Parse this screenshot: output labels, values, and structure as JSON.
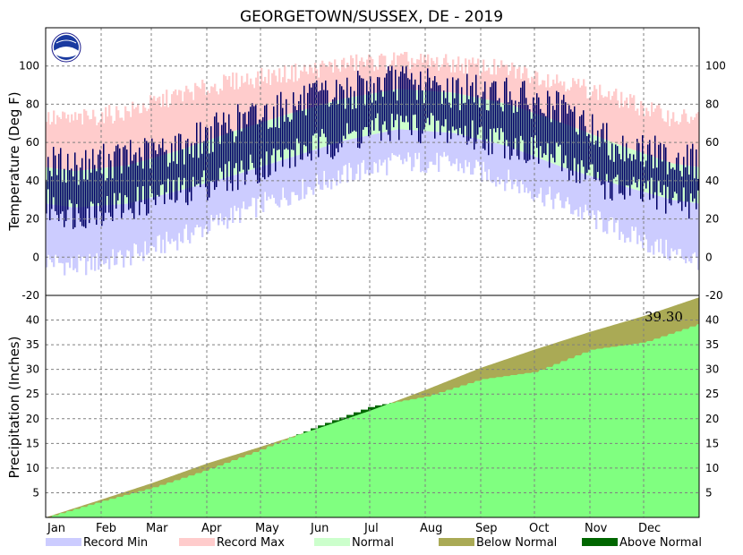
{
  "chart_data": [
    {
      "type": "bar",
      "panel": "temperature",
      "title": "GEORGETOWN/SUSSEX, DE - 2019",
      "ylabel": "Temperature (Deg F)",
      "ylim": [
        -20,
        120
      ],
      "yticks": [
        -20,
        0,
        20,
        40,
        60,
        80,
        100
      ],
      "months": [
        "Jan",
        "Feb",
        "Mar",
        "Apr",
        "May",
        "Jun",
        "Jul",
        "Aug",
        "Sep",
        "Oct",
        "Nov",
        "Dec"
      ],
      "grid": true,
      "record_min_by_month": [
        -5,
        0,
        10,
        22,
        33,
        43,
        50,
        49,
        40,
        28,
        14,
        2
      ],
      "record_max_by_month": [
        72,
        76,
        85,
        92,
        96,
        101,
        103,
        101,
        98,
        92,
        83,
        73
      ],
      "normal_low_by_month": [
        26,
        28,
        35,
        43,
        52,
        61,
        67,
        65,
        58,
        47,
        38,
        30
      ],
      "normal_high_by_month": [
        45,
        48,
        56,
        66,
        75,
        83,
        88,
        86,
        80,
        70,
        59,
        49
      ],
      "observed_low_by_month": [
        23,
        27,
        34,
        43,
        53,
        62,
        69,
        66,
        60,
        50,
        35,
        31
      ],
      "observed_high_by_month": [
        47,
        52,
        57,
        70,
        79,
        86,
        92,
        87,
        85,
        76,
        58,
        52
      ]
    },
    {
      "type": "area",
      "panel": "precipitation",
      "ylabel": "Precipitation (Inches)",
      "ylim": [
        0,
        45
      ],
      "yticks": [
        5,
        10,
        15,
        20,
        25,
        30,
        35,
        40
      ],
      "grid": true,
      "annotation": "39.30",
      "observed_cumulative_month_end": [
        3.3,
        6.0,
        9.7,
        13.8,
        18.5,
        22.5,
        24.5,
        28.0,
        29.5,
        34.0,
        35.5,
        39.3
      ],
      "normal_cumulative_month_end": [
        3.6,
        6.9,
        10.9,
        14.3,
        17.9,
        21.6,
        25.8,
        30.3,
        34.0,
        37.6,
        40.8,
        44.6
      ],
      "legend": [
        {
          "label": "Record Min",
          "color": "#ccccff"
        },
        {
          "label": "Record Max",
          "color": "#ffcccc"
        },
        {
          "label": "Normal",
          "color": "#ccffcc"
        },
        {
          "label": "Below Normal",
          "color": "#aaaa55"
        },
        {
          "label": "Above Normal",
          "color": "#006600"
        }
      ]
    }
  ],
  "colors": {
    "record_min": "#ccccff",
    "record_max": "#ffcccc",
    "normal": "#ccffcc",
    "observed": "#000066",
    "precip_observed": "#80ff80",
    "below_normal": "#aaaa55",
    "above_normal": "#006600"
  },
  "logo": {
    "text": "NOAA"
  }
}
